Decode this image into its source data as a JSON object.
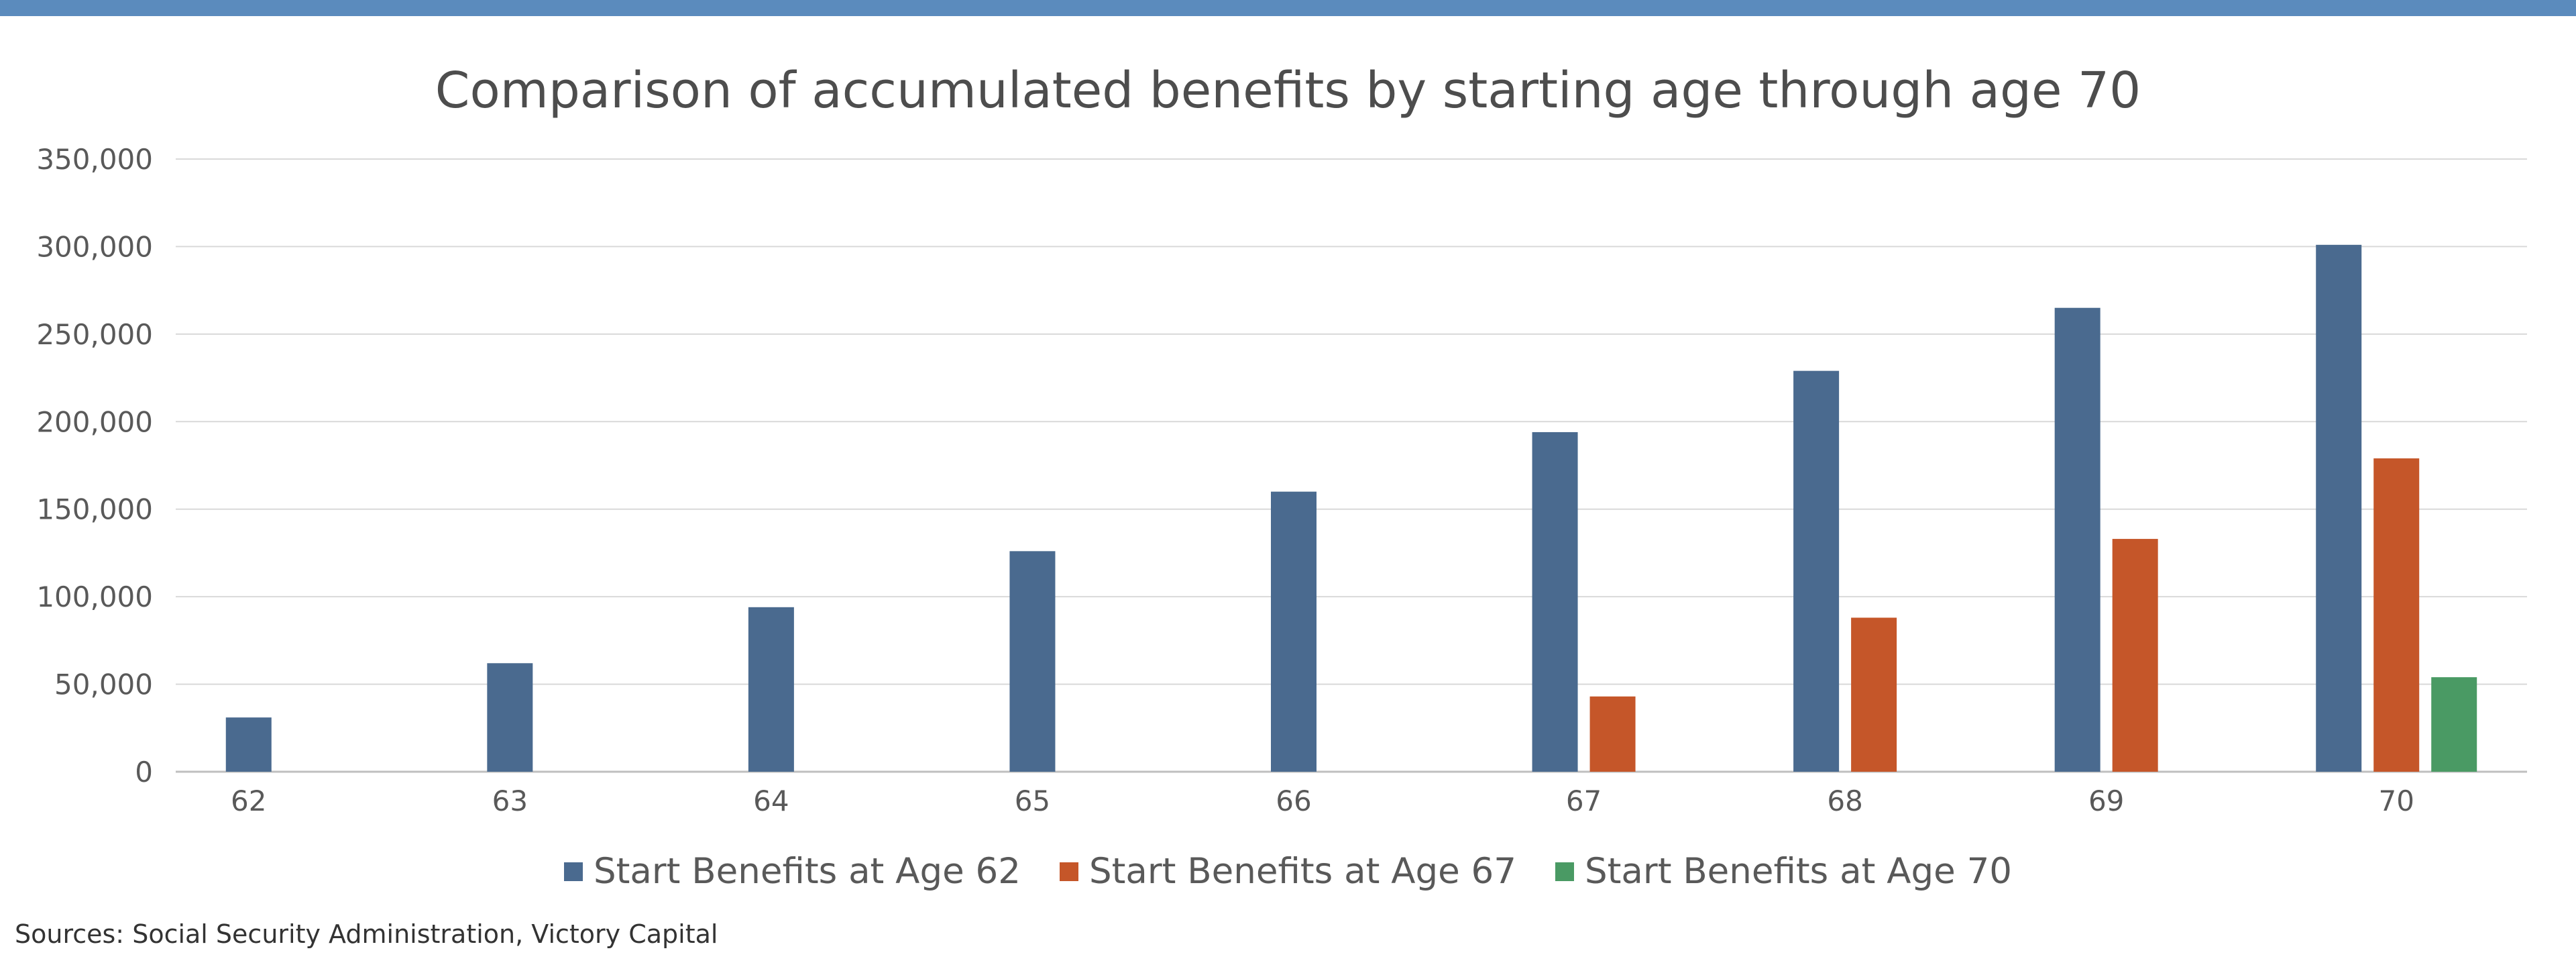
{
  "colors": {
    "top_bar": "#5b8bbd",
    "gridline": "#d9d9d9",
    "axis": "#bfbfbf"
  },
  "chart_data": {
    "type": "bar",
    "title": "Comparison of accumulated benefits by starting age through age 70",
    "xlabel": "",
    "ylabel": "",
    "categories": [
      "62",
      "63",
      "64",
      "65",
      "66",
      "67",
      "68",
      "69",
      "70"
    ],
    "y_tick_labels": [
      "0",
      "50,000",
      "100,000",
      "150,000",
      "200,000",
      "250,000",
      "300,000",
      "350,000"
    ],
    "ylim": [
      0,
      350000
    ],
    "y_step": 50000,
    "grid": true,
    "legend_position": "bottom",
    "series": [
      {
        "name": "Start Benefits at Age 62",
        "color": "#4a6a8f",
        "values": [
          31000,
          62000,
          94000,
          126000,
          160000,
          194000,
          229000,
          265000,
          301000
        ]
      },
      {
        "name": "Start Benefits at Age 67",
        "color": "#c55629",
        "values": [
          null,
          null,
          null,
          null,
          null,
          43000,
          88000,
          133000,
          179000
        ]
      },
      {
        "name": "Start Benefits at Age 70",
        "color": "#4a9a64",
        "values": [
          null,
          null,
          null,
          null,
          null,
          null,
          null,
          null,
          54000
        ]
      }
    ]
  },
  "footer": {
    "source": "Sources: Social Security Administration, Victory Capital"
  }
}
